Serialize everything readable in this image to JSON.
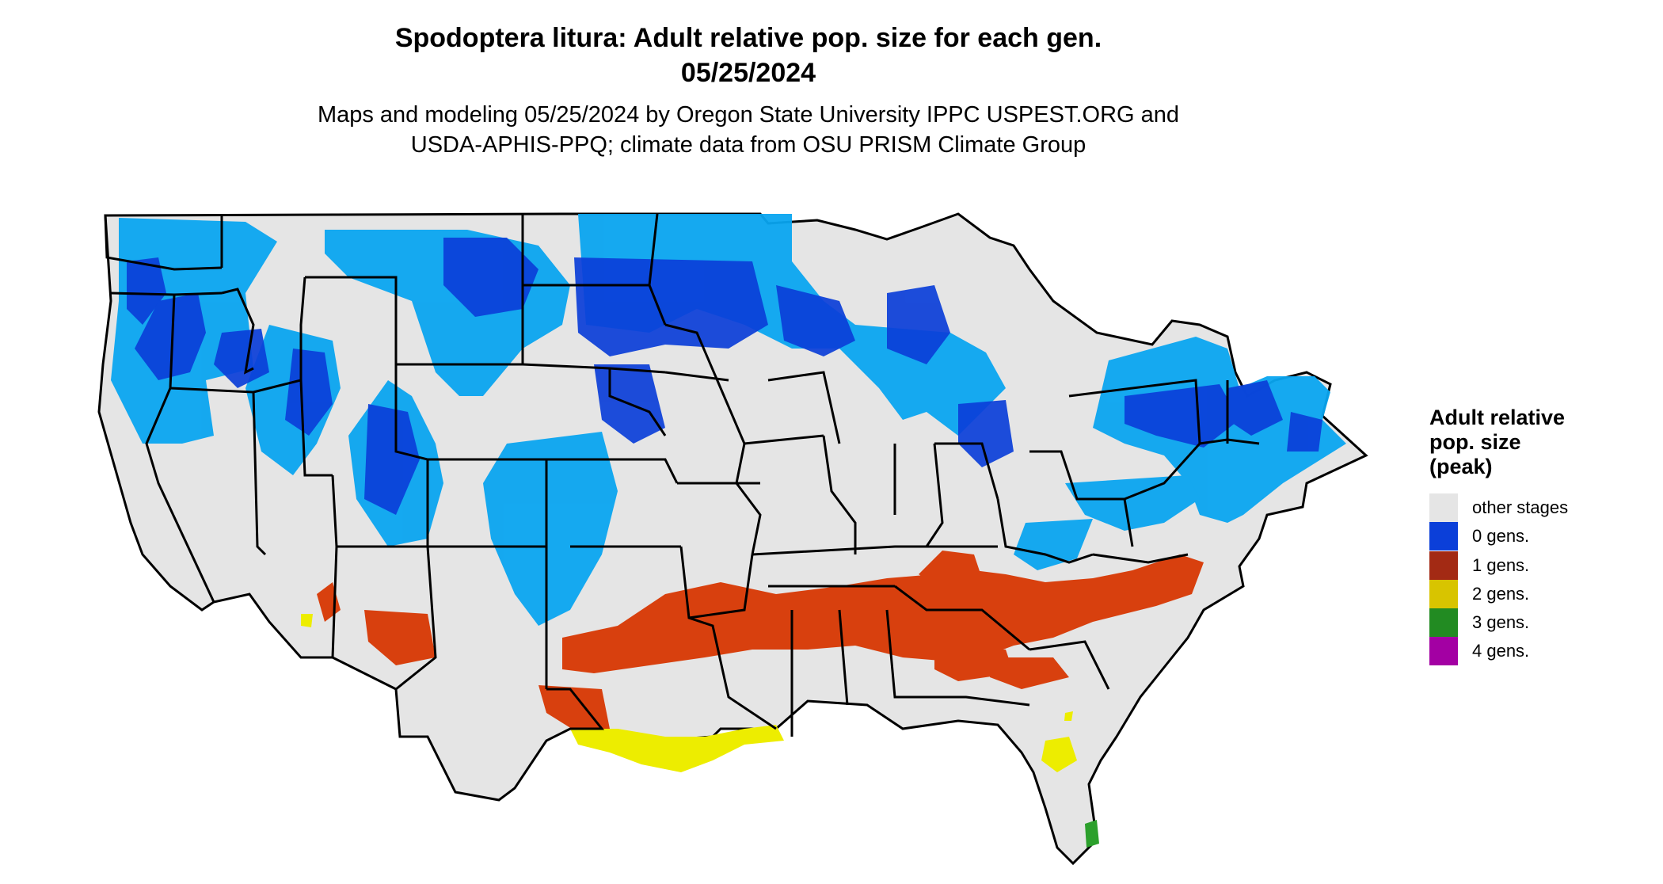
{
  "title": {
    "line1": "Spodoptera litura: Adult relative pop. size for each gen.",
    "line2": "05/25/2024"
  },
  "subtitle": {
    "line1": "Maps and modeling 05/25/2024 by Oregon State University IPPC USPEST.ORG and",
    "line2": "USDA-APHIS-PPQ; climate data from OSU PRISM Climate Group"
  },
  "legend": {
    "title_lines": [
      "Adult relative",
      "pop. size",
      "(peak)"
    ],
    "items": [
      {
        "label": "other stages",
        "color": "#e5e5e5"
      },
      {
        "label": "0 gens.",
        "color": "#0b3fd9"
      },
      {
        "label": "1 gens.",
        "color": "#a32a14"
      },
      {
        "label": "2 gens.",
        "color": "#d8c400"
      },
      {
        "label": "3 gens.",
        "color": "#228b22"
      },
      {
        "label": "4 gens.",
        "color": "#a300a3"
      }
    ]
  },
  "map_colors": {
    "land": "#e5e5e5",
    "zero_gen_dark": "#0b3fd9",
    "zero_gen_light": "#0aa5f0",
    "one_gen": "#d8400e",
    "two_gen": "#eded00",
    "three_gen": "#2ca02c",
    "borders": "#000000"
  }
}
